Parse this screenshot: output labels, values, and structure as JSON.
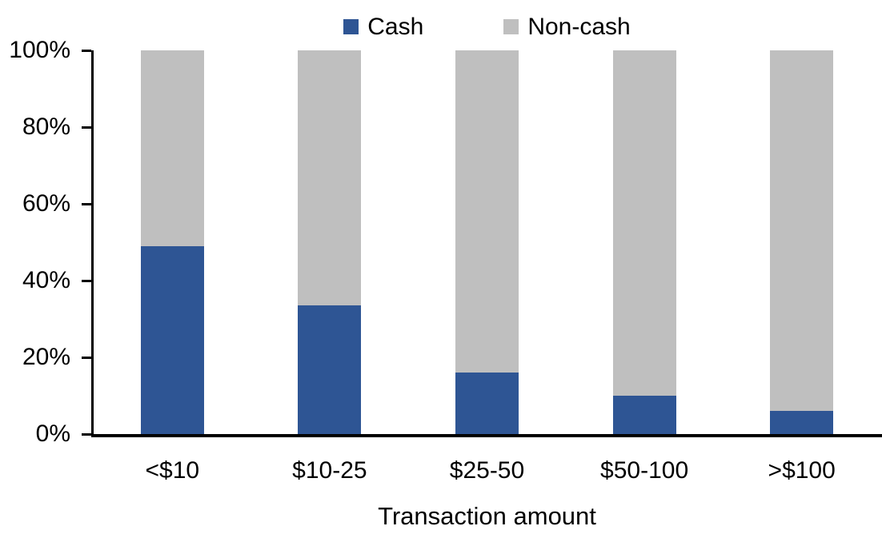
{
  "chart_data": {
    "type": "bar",
    "subtype": "stacked-100",
    "title": "",
    "categories": [
      "<$10",
      "$10-25",
      "$25-50",
      "$50-100",
      ">$100"
    ],
    "series": [
      {
        "name": "Cash",
        "color": "#2E5594",
        "values": [
          49,
          33.5,
          16,
          10,
          6
        ]
      },
      {
        "name": "Non-cash",
        "color": "#BFBFBF",
        "values": [
          51,
          66.5,
          84,
          90,
          94
        ]
      }
    ],
    "xlabel": "Transaction amount",
    "ylabel": "",
    "ylim": [
      0,
      100
    ],
    "yticks": [
      "0%",
      "20%",
      "40%",
      "60%",
      "80%",
      "100%"
    ],
    "legend_position": "top",
    "grid": false
  },
  "colors": {
    "axis": "#000000",
    "text": "#000000",
    "background": "#FFFFFF"
  }
}
